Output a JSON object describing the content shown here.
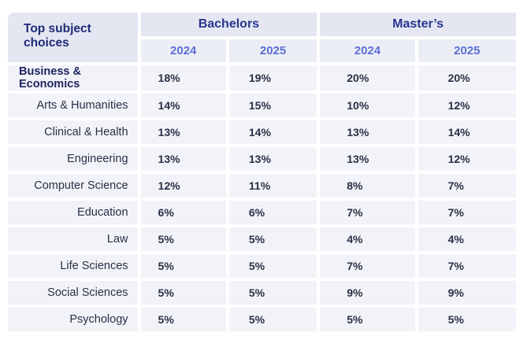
{
  "header": {
    "corner_label": "Top subject choices",
    "groups": [
      {
        "label": "Bachelors",
        "years": [
          "2024",
          "2025"
        ]
      },
      {
        "label": "Master’s",
        "years": [
          "2024",
          "2025"
        ]
      }
    ]
  },
  "rows": [
    {
      "subject": "Business & Economics",
      "bachelors_2024": "18%",
      "bachelors_2025": "19%",
      "masters_2024": "20%",
      "masters_2025": "20%"
    },
    {
      "subject": "Arts & Humanities",
      "bachelors_2024": "14%",
      "bachelors_2025": "15%",
      "masters_2024": "10%",
      "masters_2025": "12%"
    },
    {
      "subject": "Clinical & Health",
      "bachelors_2024": "13%",
      "bachelors_2025": "14%",
      "masters_2024": "13%",
      "masters_2025": "14%"
    },
    {
      "subject": "Engineering",
      "bachelors_2024": "13%",
      "bachelors_2025": "13%",
      "masters_2024": "13%",
      "masters_2025": "12%"
    },
    {
      "subject": "Computer Science",
      "bachelors_2024": "12%",
      "bachelors_2025": "11%",
      "masters_2024": "8%",
      "masters_2025": "7%"
    },
    {
      "subject": "Education",
      "bachelors_2024": "6%",
      "bachelors_2025": "6%",
      "masters_2024": "7%",
      "masters_2025": "7%"
    },
    {
      "subject": "Law",
      "bachelors_2024": "5%",
      "bachelors_2025": "5%",
      "masters_2024": "4%",
      "masters_2025": "4%"
    },
    {
      "subject": "Life Sciences",
      "bachelors_2024": "5%",
      "bachelors_2025": "5%",
      "masters_2024": "7%",
      "masters_2025": "7%"
    },
    {
      "subject": "Social Sciences",
      "bachelors_2024": "5%",
      "bachelors_2025": "5%",
      "masters_2024": "9%",
      "masters_2025": "9%"
    },
    {
      "subject": "Psychology",
      "bachelors_2024": "5%",
      "bachelors_2025": "5%",
      "masters_2024": "5%",
      "masters_2025": "5%"
    }
  ],
  "colors": {
    "header_bg": "#e4e7f2",
    "year_row_bg": "#eceef6",
    "cell_bg": "#f2f3f8",
    "title_text": "#1f2a78",
    "year_text": "#5b6fd3"
  }
}
